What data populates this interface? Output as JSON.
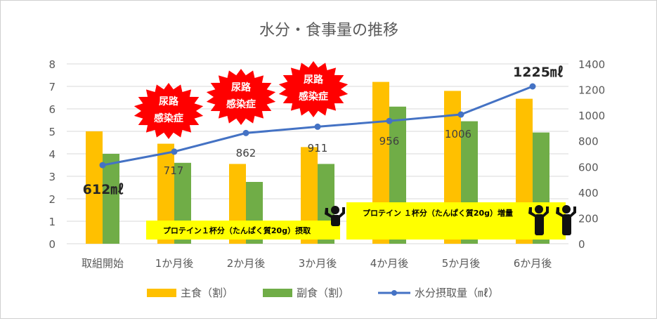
{
  "chart_data": {
    "type": "bar+line",
    "title": "水分・食事量の推移",
    "categories": [
      "取組開始",
      "1か月後",
      "2か月後",
      "3か月後",
      "4か月後",
      "5か月後",
      "6か月後"
    ],
    "series": [
      {
        "name": "主食（割）",
        "type": "bar",
        "axis": "left",
        "color": "#FFC000",
        "values": [
          5.0,
          4.45,
          3.55,
          4.3,
          7.2,
          6.8,
          6.45
        ]
      },
      {
        "name": "副食（割）",
        "type": "bar",
        "axis": "left",
        "color": "#70AD47",
        "values": [
          4.0,
          3.6,
          2.75,
          3.55,
          6.1,
          5.45,
          4.95
        ]
      },
      {
        "name": "水分摂取量（㎖）",
        "type": "line",
        "axis": "right",
        "color": "#4472C4",
        "values": [
          612,
          717,
          862,
          911,
          956,
          1006,
          1225
        ]
      }
    ],
    "data_labels": [
      "612㎖",
      "717",
      "862",
      "911",
      "956",
      "1006",
      "1225㎖"
    ],
    "y_left": {
      "min": 0,
      "max": 8,
      "ticks": [
        "0",
        "1",
        "2",
        "3",
        "4",
        "5",
        "6",
        "7",
        "8"
      ]
    },
    "y_right": {
      "min": 0,
      "max": 1400,
      "ticks": [
        "0",
        "200",
        "400",
        "600",
        "800",
        "1000",
        "1200",
        "1400"
      ]
    },
    "grid": true,
    "legend_position": "bottom"
  },
  "annotations": {
    "uti_badges": [
      {
        "line1": "尿路",
        "line2": "感染症"
      },
      {
        "line1": "尿路",
        "line2": "感染症"
      },
      {
        "line1": "尿路",
        "line2": "感染症"
      }
    ],
    "protein_banner_1": "プロテイン１杯分（たんぱく質20g）摂取",
    "protein_banner_2": "プロテイン １杯分（たんぱく質20g）増量"
  },
  "colors": {
    "badge": "#FF0000",
    "banner": "#FFFF00",
    "grid": "#D9D9D9",
    "axis_text": "#595959"
  }
}
